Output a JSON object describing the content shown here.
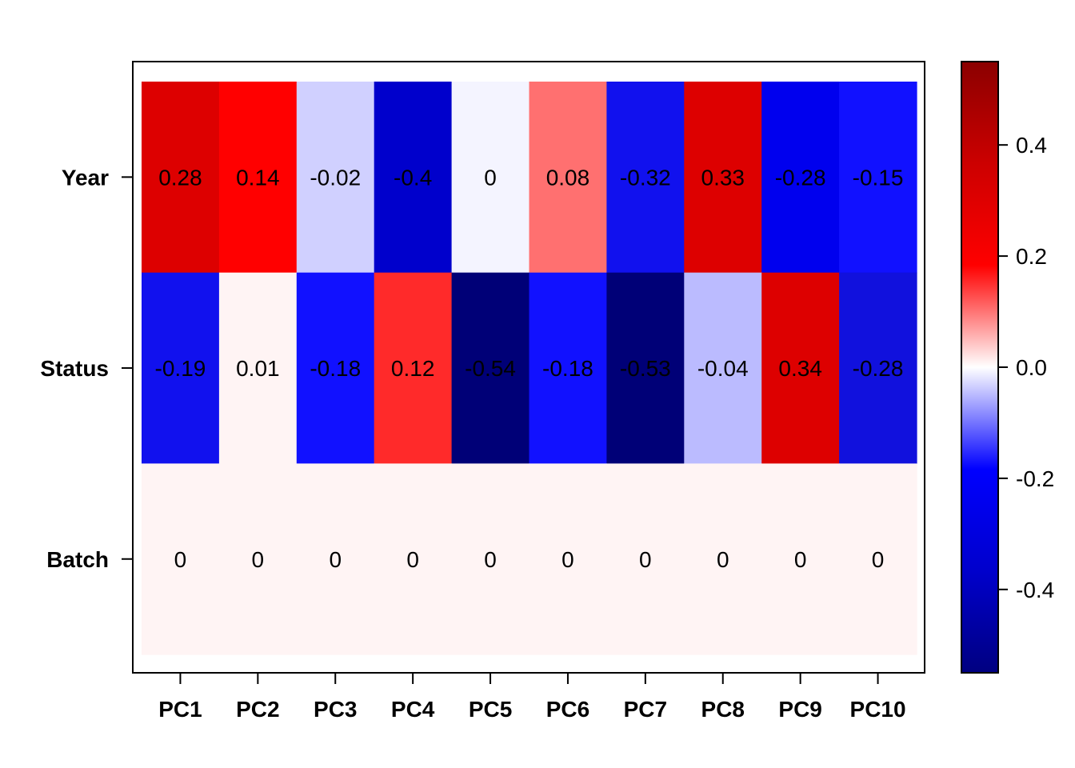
{
  "chart_data": {
    "type": "heatmap",
    "title": "",
    "xlabel": "",
    "ylabel": "",
    "rows": [
      "Year",
      "Status",
      "Batch"
    ],
    "columns": [
      "PC1",
      "PC2",
      "PC3",
      "PC4",
      "PC5",
      "PC6",
      "PC7",
      "PC8",
      "PC9",
      "PC10"
    ],
    "values": [
      [
        0.28,
        0.14,
        -0.02,
        -0.4,
        0,
        0.08,
        -0.32,
        0.33,
        -0.28,
        -0.15
      ],
      [
        -0.19,
        0.01,
        -0.18,
        0.12,
        -0.54,
        -0.18,
        -0.53,
        -0.04,
        0.34,
        -0.28
      ],
      [
        0,
        0,
        0,
        0,
        0,
        0,
        0,
        0,
        0,
        0
      ]
    ],
    "value_labels": [
      [
        "0.28",
        "0.14",
        "-0.02",
        "-0.4",
        "0",
        "0.08",
        "-0.32",
        "0.33",
        "-0.28",
        "-0.15"
      ],
      [
        "-0.19",
        "0.01",
        "-0.18",
        "0.12",
        "-0.54",
        "-0.18",
        "-0.53",
        "-0.04",
        "0.34",
        "-0.28"
      ],
      [
        "0",
        "0",
        "0",
        "0",
        "0",
        "0",
        "0",
        "0",
        "0",
        "0"
      ]
    ],
    "cell_colors": [
      [
        "#DD0000",
        "#FF0000",
        "#D0D0FF",
        "#0000CC",
        "#F4F4FF",
        "#FF7070",
        "#1111EE",
        "#DD0000",
        "#0000EE",
        "#1111FF"
      ],
      [
        "#1111EE",
        "#FFF4F4",
        "#1111FF",
        "#FF2A2A",
        "#000077",
        "#1111FF",
        "#000077",
        "#BBBBFF",
        "#DD0000",
        "#1111DD"
      ],
      [
        "#FFF4F4",
        "#FFF4F4",
        "#FFF4F4",
        "#FFF4F4",
        "#FFF4F4",
        "#FFF4F4",
        "#FFF4F4",
        "#FFF4F4",
        "#FFF4F4",
        "#FFF4F4"
      ]
    ],
    "colorbar": {
      "range": [
        -0.55,
        0.55
      ],
      "ticks": [
        0.4,
        0.2,
        0.0,
        -0.2,
        -0.4
      ],
      "tick_labels": [
        "0.4",
        "0.2",
        "0.0",
        "-0.2",
        "-0.4"
      ],
      "gradient": [
        "#000080",
        "#0000CC",
        "#0000FF",
        "#FFFFFF",
        "#FF0000",
        "#CC0000",
        "#8B0000"
      ]
    },
    "grid": false,
    "legend": "right colorbar"
  }
}
